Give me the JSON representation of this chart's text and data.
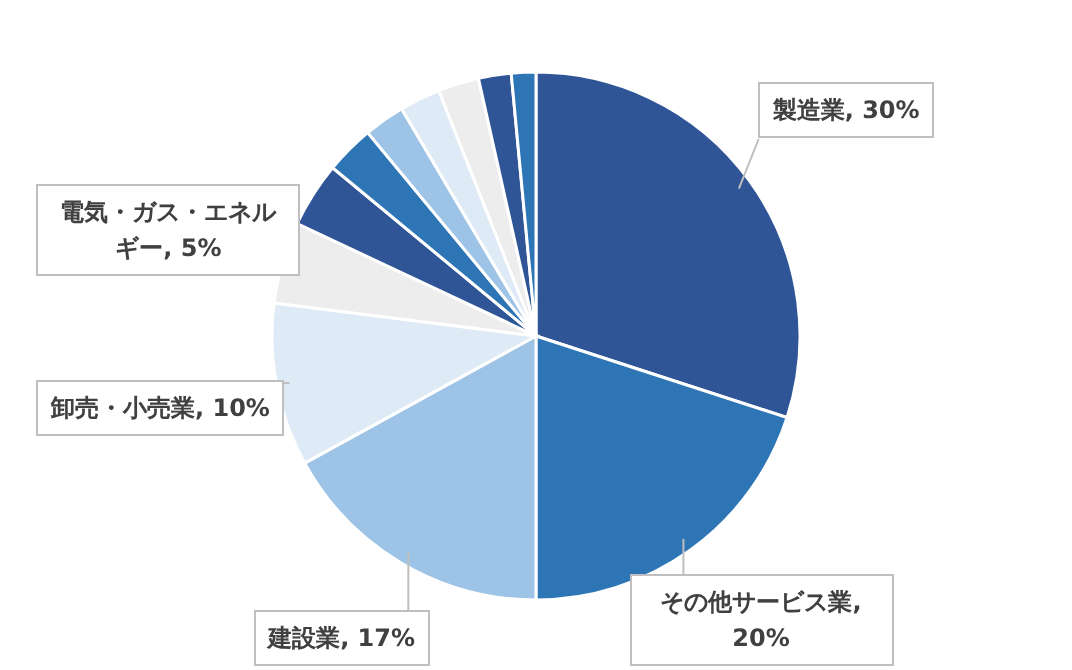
{
  "chart_data": {
    "type": "pie",
    "categories": [
      "製造業",
      "その他サービス業",
      "建設業",
      "卸売・小売業",
      "電気・ガス・エネルギー",
      null,
      null,
      null,
      null,
      null,
      null,
      null
    ],
    "values": [
      30,
      20,
      17,
      10,
      5,
      4,
      3,
      2.5,
      2.5,
      2.5,
      2,
      1.5
    ],
    "value_labels": [
      ", 30%",
      ", 20%",
      ", 17%",
      ", 10%",
      ", 5%",
      null,
      null,
      null,
      null,
      null,
      null,
      null
    ],
    "colors": [
      "#2f5597",
      "#2e75b6",
      "#9dc3e6",
      "#deebf7",
      "#ededed",
      "#2f5597",
      "#2e75b6",
      "#9dc3e6",
      "#deebf7",
      "#ededed",
      "#2f5597",
      "#2e75b6"
    ]
  }
}
